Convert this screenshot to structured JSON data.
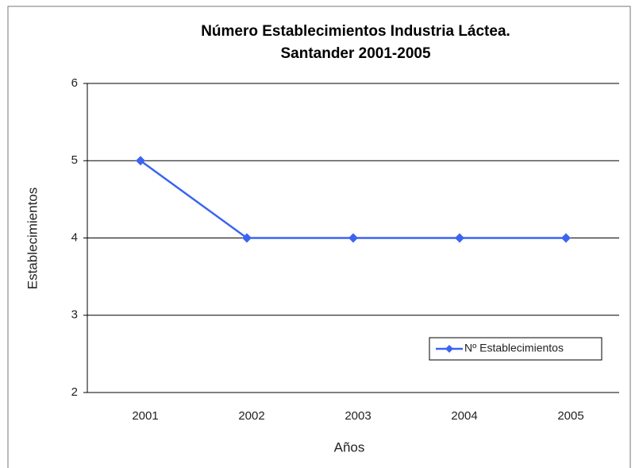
{
  "chart_data": {
    "type": "line",
    "title": [
      "Número Establecimientos Industria Láctea.",
      "Santander 2001-2005"
    ],
    "x_label": "Años",
    "y_label": "Establecimientos",
    "categories": [
      "2001",
      "2002",
      "2003",
      "2004",
      "2005"
    ],
    "series": [
      {
        "name": "Nº Establecimientos",
        "color": "#3b64f0",
        "values": [
          5,
          4,
          4,
          4,
          4
        ]
      }
    ],
    "ylim": [
      2,
      6
    ],
    "yticks": [
      2,
      3,
      4,
      5,
      6
    ],
    "grid": true,
    "legend": "lower right"
  }
}
